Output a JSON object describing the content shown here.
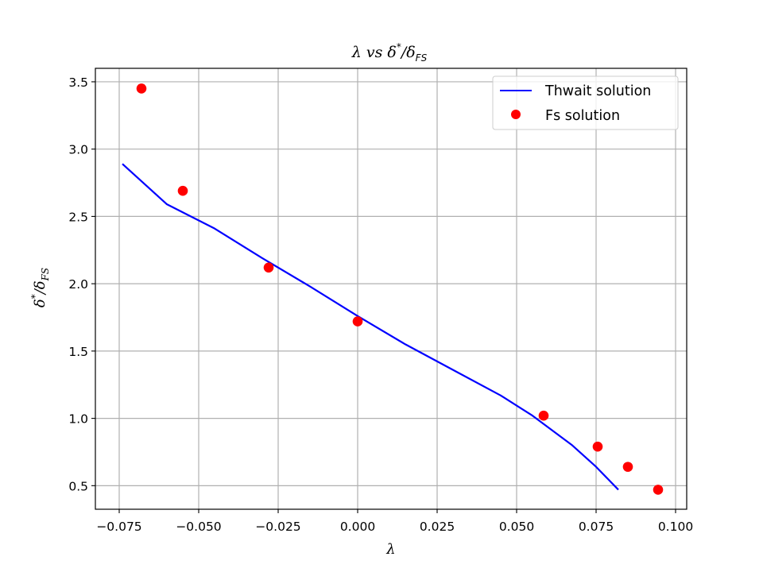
{
  "chart_data": {
    "type": "line",
    "title": "λ vs δ*/δFS",
    "title_parts": {
      "main": "λ vs δ",
      "sup": "*",
      "sep": "/δ",
      "sub": "FS"
    },
    "xlabel": "λ",
    "ylabel_parts": {
      "main": "δ",
      "sup": "*",
      "sep": "/δ",
      "sub": "FS"
    },
    "xlim": [
      -0.0825,
      0.1035
    ],
    "ylim": [
      0.325,
      3.6
    ],
    "xticks": [
      -0.075,
      -0.05,
      -0.025,
      0.0,
      0.025,
      0.05,
      0.075,
      0.1
    ],
    "xtick_labels": [
      "−0.075",
      "−0.050",
      "−0.025",
      "0.000",
      "0.025",
      "0.050",
      "0.075",
      "0.100"
    ],
    "yticks": [
      0.5,
      1.0,
      1.5,
      2.0,
      2.5,
      3.0,
      3.5
    ],
    "ytick_labels": [
      "0.5",
      "1.0",
      "1.5",
      "2.0",
      "2.5",
      "3.0",
      "3.5"
    ],
    "grid": true,
    "legend_position": "top-right",
    "series": [
      {
        "name": "Thwait solution",
        "kind": "line",
        "color": "#0000ff",
        "x": [
          -0.074,
          -0.06,
          -0.045,
          -0.03,
          -0.015,
          0.0,
          0.015,
          0.03,
          0.045,
          0.055,
          0.0675,
          0.075,
          0.082
        ],
        "y": [
          2.89,
          2.59,
          2.41,
          2.19,
          1.98,
          1.76,
          1.55,
          1.36,
          1.17,
          1.02,
          0.8,
          0.64,
          0.47
        ]
      },
      {
        "name": "Fs solution",
        "kind": "scatter",
        "color": "#ff0000",
        "x": [
          -0.068,
          -0.055,
          -0.028,
          0.0,
          0.0585,
          0.0755,
          0.085,
          0.0945
        ],
        "y": [
          3.45,
          2.69,
          2.12,
          1.72,
          1.02,
          0.79,
          0.64,
          0.47
        ]
      }
    ]
  }
}
